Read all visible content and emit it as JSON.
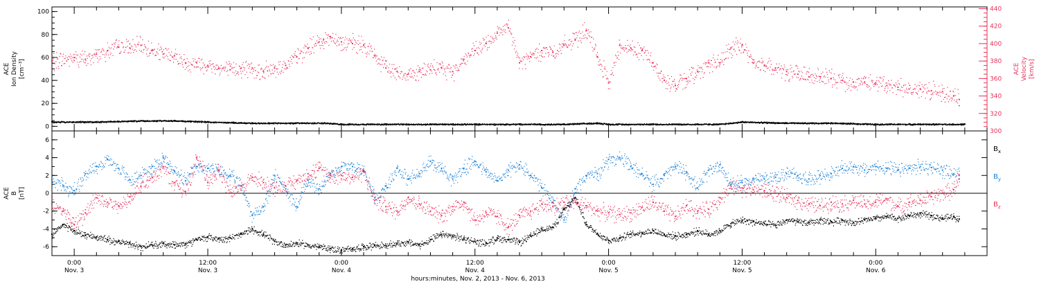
{
  "colors": {
    "density": "#000000",
    "velocity": "#e8305a",
    "bx": "#000000",
    "by": "#1a7fd4",
    "bz": "#e8305a"
  },
  "time_axis": {
    "start_hour": -2,
    "end_hour": 82,
    "ticks": [
      {
        "hour": 0,
        "time": "0:00",
        "day": "Nov. 3"
      },
      {
        "hour": 12,
        "time": "12:00",
        "day": "Nov. 3"
      },
      {
        "hour": 24,
        "time": "0:00",
        "day": "Nov. 4"
      },
      {
        "hour": 36,
        "time": "12:00",
        "day": "Nov. 4"
      },
      {
        "hour": 48,
        "time": "0:00",
        "day": "Nov. 5"
      },
      {
        "hour": 60,
        "time": "12:00",
        "day": "Nov. 5"
      },
      {
        "hour": 72,
        "time": "0:00",
        "day": "Nov. 6"
      }
    ],
    "xlabel": "hours:minutes, Nov.  2, 2013 - Nov.  6, 2013"
  },
  "top_panel": {
    "left_label_lines": [
      "ACE",
      "Ion Density",
      "[cm⁻³]"
    ],
    "right_label_lines": [
      "ACE",
      "Velocity",
      "[km/s]"
    ],
    "left_ylim": [
      -4,
      104
    ],
    "left_ticks": [
      "0",
      "20",
      "40",
      "60",
      "80",
      "100"
    ],
    "right_ylim": [
      300,
      442
    ],
    "right_ticks": [
      "300",
      "320",
      "340",
      "360",
      "380",
      "400",
      "420",
      "440"
    ]
  },
  "bottom_panel": {
    "label_lines": [
      "ACE",
      "B",
      "[nT]"
    ],
    "ylim": [
      -7,
      7
    ],
    "ticks": [
      "-6",
      "-4",
      "-2",
      "0",
      "2",
      "4",
      "6"
    ],
    "legend": [
      "Bx",
      "By",
      "Bz"
    ]
  },
  "chart_data": [
    {
      "type": "scatter",
      "title": "",
      "xlabel": "hours:minutes, Nov.  2, 2013 - Nov.  6, 2013",
      "ylabel": "ACE Ion Density [cm-3]",
      "y2label": "ACE Velocity [km/s]",
      "x_units": "hours since 2013-11-03 00:00",
      "xlim": [
        -2,
        82
      ],
      "ylim": [
        -4,
        104
      ],
      "y2lim": [
        300,
        442
      ],
      "series": [
        {
          "name": "Ion Density",
          "axis": "left",
          "x": [
            -2,
            2,
            6,
            9,
            12,
            16,
            20,
            22.5,
            24,
            28,
            32,
            36,
            40,
            44,
            47,
            48,
            52,
            56,
            58,
            60,
            64,
            68,
            72,
            76,
            80
          ],
          "y": [
            4,
            4,
            5,
            5,
            4,
            3,
            3,
            3,
            2,
            2,
            2,
            2,
            2,
            2,
            3,
            2,
            2,
            2,
            2,
            4,
            3,
            3,
            2,
            2,
            2
          ]
        },
        {
          "name": "Velocity",
          "axis": "right",
          "x": [
            -2,
            0,
            1,
            2,
            3,
            4,
            5,
            6,
            7,
            8,
            9,
            10,
            11,
            12,
            13,
            14,
            15,
            16,
            17,
            18,
            19,
            20,
            21,
            22,
            22.4,
            23,
            24,
            25,
            26,
            27,
            28,
            29,
            30,
            31,
            32,
            33,
            34,
            35,
            36,
            37,
            38,
            39,
            40,
            41,
            42,
            43,
            44,
            45,
            46,
            47,
            48,
            49,
            50,
            51,
            52,
            53,
            54,
            55,
            56,
            57,
            58,
            59,
            60,
            61,
            62,
            63,
            64,
            65,
            66,
            67,
            68,
            69,
            70,
            71,
            72,
            73,
            74,
            75,
            76,
            77,
            78,
            79,
            79.5
          ],
          "y": [
            380,
            384,
            382,
            388,
            392,
            396,
            395,
            398,
            392,
            388,
            386,
            378,
            378,
            375,
            372,
            370,
            372,
            372,
            368,
            372,
            375,
            385,
            395,
            402,
            405,
            408,
            402,
            400,
            398,
            386,
            372,
            368,
            365,
            368,
            370,
            372,
            368,
            382,
            392,
            400,
            412,
            418,
            378,
            385,
            392,
            390,
            398,
            405,
            415,
            385,
            355,
            398,
            395,
            392,
            378,
            358,
            352,
            360,
            368,
            378,
            378,
            395,
            398,
            378,
            375,
            372,
            368,
            365,
            362,
            362,
            360,
            358,
            356,
            356,
            355,
            352,
            350,
            348,
            348,
            346,
            345,
            340,
            336
          ]
        }
      ]
    },
    {
      "type": "scatter",
      "title": "",
      "xlabel": "hours:minutes, Nov.  2, 2013 - Nov.  6, 2013",
      "ylabel": "ACE B [nT]",
      "x_units": "hours since 2013-11-03 00:00",
      "xlim": [
        -2,
        82
      ],
      "ylim": [
        -7,
        7
      ],
      "series": [
        {
          "name": "Bx",
          "x": [
            -2,
            -1,
            0,
            1,
            2,
            3,
            4,
            5,
            6,
            7,
            8,
            9,
            10,
            11,
            12,
            13,
            14,
            15,
            16,
            17,
            18,
            19,
            20,
            21,
            22,
            23,
            24,
            25,
            26,
            27,
            28,
            29,
            30,
            31,
            32,
            33,
            34,
            35,
            36,
            37,
            38,
            39,
            40,
            41,
            42,
            43,
            44,
            45,
            46,
            47,
            48,
            49,
            50,
            51,
            52,
            53,
            54,
            55,
            56,
            57,
            58,
            59,
            60,
            61,
            62,
            63,
            64,
            65,
            66,
            67,
            68,
            69,
            70,
            71,
            72,
            73,
            74,
            75,
            76,
            77,
            78,
            79,
            79.5
          ],
          "y": [
            -4.6,
            -3.5,
            -4.2,
            -4.7,
            -4.9,
            -5.2,
            -5.4,
            -5.6,
            -6.0,
            -5.8,
            -5.6,
            -5.8,
            -5.7,
            -5.2,
            -4.9,
            -5.1,
            -5.0,
            -4.6,
            -4.0,
            -4.6,
            -5.4,
            -5.8,
            -5.6,
            -5.8,
            -6.0,
            -6.2,
            -6.4,
            -6.2,
            -6.0,
            -5.8,
            -5.9,
            -5.6,
            -5.5,
            -5.8,
            -5.2,
            -4.6,
            -4.8,
            -5.1,
            -5.4,
            -5.6,
            -5.0,
            -5.2,
            -5.5,
            -4.8,
            -4.0,
            -3.8,
            -1.8,
            -0.5,
            -3.5,
            -4.5,
            -5.3,
            -5.0,
            -4.6,
            -4.4,
            -4.2,
            -4.6,
            -4.8,
            -4.6,
            -4.2,
            -4.6,
            -4.2,
            -3.4,
            -3.0,
            -3.2,
            -3.4,
            -3.6,
            -3.0,
            -3.2,
            -3.3,
            -3.0,
            -3.2,
            -3.0,
            -3.3,
            -3.0,
            -2.8,
            -2.6,
            -2.8,
            -2.5,
            -2.3,
            -2.5,
            -2.8,
            -2.6,
            -2.9
          ]
        },
        {
          "name": "By",
          "x": [
            -2,
            -1,
            0,
            1,
            2,
            3,
            4,
            5,
            6,
            7,
            8,
            9,
            10,
            11,
            12,
            13,
            14,
            15,
            16,
            17,
            18,
            19,
            20,
            21,
            22,
            23,
            24,
            25,
            26,
            27,
            28,
            29,
            30,
            31,
            32,
            33,
            34,
            35,
            36,
            37,
            38,
            39,
            40,
            41,
            42,
            43,
            44,
            45,
            46,
            47,
            48,
            49,
            50,
            51,
            52,
            53,
            54,
            55,
            56,
            57,
            58,
            59,
            60,
            61,
            62,
            63,
            64,
            65,
            66,
            67,
            68,
            69,
            70,
            71,
            72,
            73,
            74,
            75,
            76,
            77,
            78,
            79,
            79.5
          ],
          "y": [
            1.5,
            0.8,
            0.3,
            2.2,
            3.0,
            3.8,
            2.8,
            1.5,
            2.0,
            3.0,
            4.0,
            2.5,
            1.4,
            3.0,
            2.8,
            2.5,
            2.0,
            0.8,
            -2.5,
            -1.5,
            2.0,
            0.5,
            -1.5,
            1.5,
            0.5,
            2.2,
            3.0,
            3.0,
            2.6,
            -0.5,
            0.8,
            2.8,
            1.6,
            2.2,
            3.6,
            2.8,
            1.6,
            2.8,
            3.6,
            2.4,
            1.4,
            2.6,
            3.2,
            2.0,
            0.6,
            -1.0,
            -3.0,
            0.5,
            2.0,
            2.2,
            3.8,
            4.0,
            3.0,
            2.2,
            1.0,
            2.0,
            3.0,
            2.4,
            0.6,
            2.6,
            3.2,
            1.0,
            1.2,
            1.6,
            1.6,
            1.8,
            2.2,
            2.0,
            1.6,
            2.0,
            2.2,
            2.8,
            3.0,
            2.6,
            3.0,
            2.8,
            2.6,
            2.8,
            3.0,
            2.9,
            2.6,
            2.2,
            2.0
          ]
        },
        {
          "name": "Bz",
          "x": [
            -2,
            -1,
            0,
            1,
            2,
            3,
            4,
            5,
            6,
            7,
            8,
            9,
            10,
            11,
            12,
            13,
            14,
            15,
            16,
            17,
            18,
            19,
            20,
            21,
            22,
            23,
            24,
            25,
            26,
            27,
            28,
            29,
            30,
            31,
            32,
            33,
            34,
            35,
            36,
            37,
            38,
            39,
            40,
            41,
            42,
            43,
            44,
            45,
            46,
            47,
            48,
            49,
            50,
            51,
            52,
            53,
            54,
            55,
            56,
            57,
            58,
            59,
            60,
            61,
            62,
            63,
            64,
            65,
            66,
            67,
            68,
            69,
            70,
            71,
            72,
            73,
            74,
            75,
            76,
            77,
            78,
            79,
            79.5
          ],
          "y": [
            -1.2,
            -2.0,
            -3.5,
            -2.2,
            -0.5,
            -1.0,
            -1.4,
            -0.4,
            0.8,
            1.8,
            3.0,
            1.2,
            0.2,
            4.0,
            1.2,
            2.6,
            0.0,
            0.8,
            1.8,
            1.2,
            0.6,
            0.8,
            1.4,
            2.2,
            2.8,
            2.0,
            2.0,
            1.8,
            2.4,
            -0.8,
            -1.5,
            -2.0,
            -0.5,
            -1.2,
            -2.0,
            -2.5,
            -1.5,
            -1.0,
            -3.0,
            -2.2,
            -2.6,
            -3.8,
            -2.5,
            -2.0,
            -1.2,
            -1.5,
            -1.0,
            -1.0,
            -1.4,
            -2.0,
            -2.2,
            -2.4,
            -2.2,
            -1.6,
            -1.0,
            -2.0,
            -2.6,
            -1.4,
            -2.0,
            -1.8,
            -0.5,
            0.8,
            0.6,
            0.4,
            0.3,
            0.0,
            -0.5,
            -0.8,
            -1.2,
            -1.4,
            -1.0,
            -1.2,
            -0.8,
            -1.2,
            -1.0,
            -0.6,
            -1.5,
            -1.0,
            -0.8,
            -0.4,
            0.0,
            0.4,
            1.6
          ]
        }
      ]
    }
  ]
}
